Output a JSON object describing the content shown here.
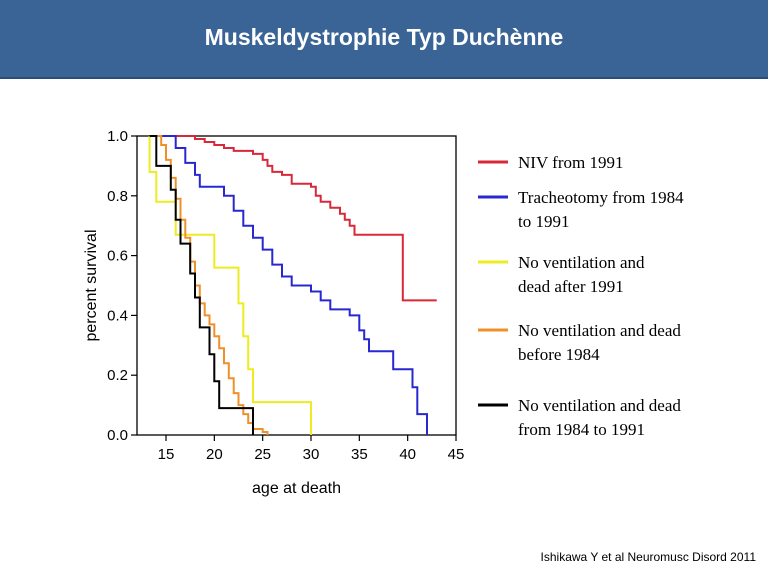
{
  "slide": {
    "title": "Muskeldystrophie Typ Duchènne",
    "citation": "Ishikawa Y et al Neuromusc Disord 2011"
  },
  "chart_data": {
    "type": "line",
    "subtype": "step",
    "xlabel": "age at death",
    "ylabel": "percent survival",
    "xlim": [
      12,
      45
    ],
    "ylim": [
      0,
      1.0
    ],
    "xticks": [
      "15",
      "20",
      "25",
      "30",
      "35",
      "40",
      "45"
    ],
    "yticks": [
      "0.0",
      "0.2",
      "0.4",
      "0.6",
      "0.8",
      "1.0"
    ],
    "grid": false,
    "legend_position": "right",
    "series": [
      {
        "name": "NIV from 1991",
        "color": "#d9283a",
        "legend_lines": [
          "NIV from 1991"
        ],
        "points": [
          [
            16,
            1.0
          ],
          [
            18,
            0.99
          ],
          [
            19,
            0.98
          ],
          [
            20,
            0.97
          ],
          [
            21,
            0.96
          ],
          [
            22,
            0.95
          ],
          [
            24,
            0.94
          ],
          [
            25,
            0.92
          ],
          [
            25.5,
            0.9
          ],
          [
            26,
            0.88
          ],
          [
            27,
            0.87
          ],
          [
            28,
            0.84
          ],
          [
            30,
            0.83
          ],
          [
            30.5,
            0.8
          ],
          [
            31,
            0.78
          ],
          [
            32,
            0.76
          ],
          [
            33,
            0.74
          ],
          [
            33.5,
            0.72
          ],
          [
            34,
            0.7
          ],
          [
            34.5,
            0.67
          ],
          [
            39.5,
            0.67
          ],
          [
            39.5,
            0.45
          ],
          [
            43,
            0.45
          ]
        ]
      },
      {
        "name": "Tracheotomy from 1984 to 1991",
        "color": "#2828d0",
        "legend_lines": [
          "Tracheotomy from 1984",
          "to 1991"
        ],
        "points": [
          [
            14,
            1.0
          ],
          [
            15.5,
            1.0
          ],
          [
            16,
            0.96
          ],
          [
            17,
            0.91
          ],
          [
            18,
            0.87
          ],
          [
            18.5,
            0.83
          ],
          [
            21,
            0.8
          ],
          [
            22,
            0.75
          ],
          [
            23,
            0.7
          ],
          [
            24,
            0.66
          ],
          [
            25,
            0.62
          ],
          [
            26,
            0.57
          ],
          [
            27,
            0.53
          ],
          [
            28,
            0.5
          ],
          [
            30,
            0.48
          ],
          [
            31,
            0.45
          ],
          [
            32,
            0.42
          ],
          [
            34,
            0.4
          ],
          [
            35,
            0.35
          ],
          [
            35.5,
            0.32
          ],
          [
            36,
            0.28
          ],
          [
            38.5,
            0.22
          ],
          [
            40.5,
            0.16
          ],
          [
            41,
            0.07
          ],
          [
            42,
            0.07
          ],
          [
            42,
            0.0
          ]
        ]
      },
      {
        "name": "No ventilation and dead after 1991",
        "color": "#ecec20",
        "legend_lines": [
          "No ventilation and",
          "dead after 1991"
        ],
        "points": [
          [
            13.3,
            1.0
          ],
          [
            13.3,
            0.88
          ],
          [
            14,
            0.78
          ],
          [
            15.5,
            0.78
          ],
          [
            16,
            0.67
          ],
          [
            19.5,
            0.67
          ],
          [
            20,
            0.56
          ],
          [
            22,
            0.56
          ],
          [
            22.5,
            0.44
          ],
          [
            23,
            0.33
          ],
          [
            23.5,
            0.22
          ],
          [
            24,
            0.11
          ],
          [
            30,
            0.11
          ],
          [
            30,
            0.0
          ]
        ]
      },
      {
        "name": "No ventilation and dead before 1984",
        "color": "#f0902a",
        "legend_lines": [
          "No ventilation and dead",
          "before 1984"
        ],
        "points": [
          [
            13.8,
            1.0
          ],
          [
            14.5,
            0.97
          ],
          [
            15,
            0.92
          ],
          [
            15.5,
            0.86
          ],
          [
            16,
            0.79
          ],
          [
            16.5,
            0.72
          ],
          [
            17,
            0.66
          ],
          [
            17.5,
            0.58
          ],
          [
            18,
            0.5
          ],
          [
            18.5,
            0.44
          ],
          [
            19,
            0.4
          ],
          [
            19.5,
            0.37
          ],
          [
            20,
            0.33
          ],
          [
            20.5,
            0.29
          ],
          [
            21,
            0.24
          ],
          [
            21.5,
            0.19
          ],
          [
            22,
            0.14
          ],
          [
            22.5,
            0.1
          ],
          [
            23,
            0.07
          ],
          [
            23.5,
            0.04
          ],
          [
            24,
            0.02
          ],
          [
            25,
            0.01
          ],
          [
            25.5,
            0.0
          ]
        ]
      },
      {
        "name": "No ventilation and dead from 1984 to 1991",
        "color": "#000000",
        "legend_lines": [
          "No ventilation and dead",
          "from 1984 to 1991"
        ],
        "points": [
          [
            13.3,
            1.0
          ],
          [
            14,
            0.9
          ],
          [
            15.5,
            0.82
          ],
          [
            16,
            0.72
          ],
          [
            16.5,
            0.64
          ],
          [
            17.5,
            0.54
          ],
          [
            18,
            0.46
          ],
          [
            18.5,
            0.36
          ],
          [
            19.5,
            0.27
          ],
          [
            20,
            0.18
          ],
          [
            20.5,
            0.09
          ],
          [
            24,
            0.09
          ],
          [
            24,
            0.0
          ]
        ]
      }
    ]
  }
}
